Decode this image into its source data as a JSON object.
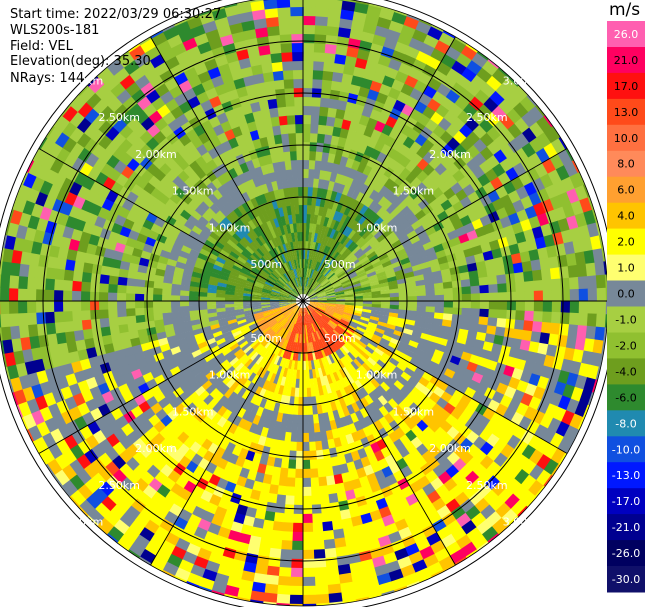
{
  "header": {
    "start_time": "Start time: 2022/03/29 06:30:27",
    "station": "WLS200s-181",
    "field": "Field: VEL",
    "elevation": "Elevation(deg): 35.30",
    "nrays": "NRays: 144"
  },
  "chart_data": {
    "type": "heatmap",
    "projection": "polar-ppi",
    "field": "VEL",
    "nrays": 144,
    "elevation_deg": 35.3,
    "max_range_km": 3.4,
    "range_rings": [
      {
        "km": 0.5,
        "label": "500m"
      },
      {
        "km": 1.0,
        "label": "1.00km"
      },
      {
        "km": 1.5,
        "label": "1.50km"
      },
      {
        "km": 2.0,
        "label": "2.00km"
      },
      {
        "km": 2.5,
        "label": "2.50km"
      },
      {
        "km": 3.0,
        "label": "3.00km"
      }
    ],
    "colorbar": {
      "unit": "m/s",
      "range": [
        -30.0,
        30.0
      ],
      "ticks": [
        "26.0",
        "21.0",
        "17.0",
        "13.0",
        "10.0",
        "8.0",
        "6.0",
        "4.0",
        "2.0",
        "1.0",
        "0.0",
        "-1.0",
        "-2.0",
        "-4.0",
        "-6.0",
        "-8.0",
        "-10.0",
        "-13.0",
        "-17.0",
        "-21.0",
        "-26.0",
        "-30.0"
      ],
      "colors": [
        "#ff5fb0",
        "#ff0060",
        "#ff1010",
        "#ff4a1a",
        "#ff7040",
        "#ff8a5a",
        "#ffa030",
        "#ffc400",
        "#ffff00",
        "#ffff70",
        "#778899",
        "#a7cf42",
        "#90c030",
        "#6e9e1e",
        "#2e8a2e",
        "#208ab0",
        "#1050e0",
        "#0018ff",
        "#0000c0",
        "#000090",
        "#000060",
        "#10106a"
      ]
    },
    "sectors_description": [
      {
        "az_from": 0,
        "az_to": 100,
        "dominant": "green (-2 to -6 m/s)"
      },
      {
        "az_from": 100,
        "az_to": 260,
        "dominant": "yellow (2 to 4 m/s)"
      },
      {
        "az_from": 260,
        "az_to": 360,
        "dominant": "green / gray"
      }
    ]
  }
}
